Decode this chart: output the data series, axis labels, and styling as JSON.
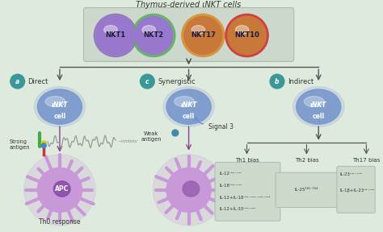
{
  "bg_color": "#deeade",
  "title": "Thymus-derived ιNKT cells",
  "title_fontsize": 7,
  "nkt_cells": [
    "NKT1",
    "NKT2",
    "NKT17",
    "NKT10"
  ],
  "nkt_fill": [
    "#9878cc",
    "#9878cc",
    "#c87838",
    "#c87838"
  ],
  "nkt_border": [
    "#9070c0",
    "#5ab05a",
    "#d89030",
    "#cc3030"
  ],
  "section_labels": [
    "a",
    "c",
    "b"
  ],
  "section_titles": [
    "Direct",
    "Synergistic",
    "Indirect"
  ],
  "th_labels": [
    "Th1 bias",
    "Th2 bias",
    "Th17 bias"
  ],
  "th1_lines": [
    "IL-12¹³⁹⁻¹⁴¹",
    "IL-18¹³⁹⁻¹⁴⁰",
    "IL-12+IL-18¹³⁹⁻¹⁴⁰⁻¹⁴²⁻¹⁴³",
    "IL-12+IL-33¹⁴³⁻¹⁴⁴"
  ],
  "th2_lines": [
    "IL-25¹⁴¹⁻¹⁵⁴"
  ],
  "th17_lines": [
    "IL-23¹⁴¹⁻¹⁴⁸",
    "IL-1β+IL-23¹⁵⁻¹⁴⁸"
  ],
  "inkt_color": "#7898cc",
  "apc_color": "#b888c8",
  "arrow_color": "#555555",
  "teal_color": "#3a9898",
  "box_bg": "#ccdacc",
  "topbox_bg": "#ccd8cc",
  "panel_edge": "#aabcaa"
}
